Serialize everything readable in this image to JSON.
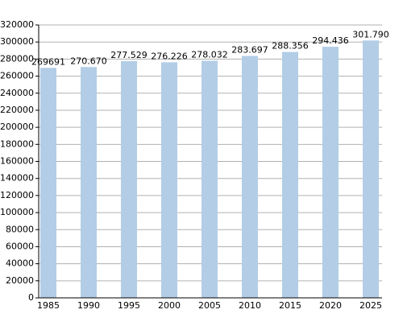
{
  "chart_data": {
    "type": "bar",
    "categories": [
      "1985",
      "1990",
      "1995",
      "2000",
      "2005",
      "2010",
      "2015",
      "2020",
      "2025"
    ],
    "values": [
      269691,
      270670,
      277529,
      276226,
      278032,
      283697,
      288356,
      294436,
      301790
    ],
    "value_labels": [
      "269691",
      "270.670",
      "277.529",
      "276.226",
      "278.032",
      "283.697",
      "288.356",
      "294.436",
      "301.790"
    ],
    "color": "#b3cde6",
    "ylim": [
      0,
      320000
    ],
    "yticks": [
      0,
      20000,
      40000,
      60000,
      80000,
      100000,
      120000,
      140000,
      160000,
      180000,
      200000,
      220000,
      240000,
      260000,
      280000,
      300000,
      320000
    ],
    "grid": true
  }
}
